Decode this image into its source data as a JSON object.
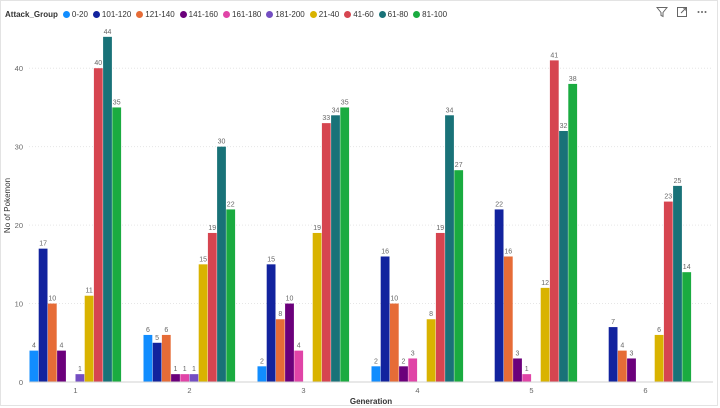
{
  "legend": {
    "title": "Attack_Group"
  },
  "toolbar": {
    "filter_icon": "filter-icon",
    "focus_icon": "focus-mode-icon",
    "more_icon": "more-options-icon"
  },
  "colors": {
    "0-20": "#118DFF",
    "101-120": "#12239E",
    "121-140": "#E66C37",
    "141-160": "#6B007B",
    "161-180": "#E044A7",
    "181-200": "#744EC2",
    "21-40": "#D9B300",
    "41-60": "#D64550",
    "61-80": "#197278",
    "81-100": "#1AAB40"
  },
  "chart_data": {
    "type": "bar",
    "title": "",
    "xlabel": "Generation",
    "ylabel": "No of Pokemon",
    "categories": [
      "1",
      "2",
      "3",
      "4",
      "5",
      "6"
    ],
    "ylim": [
      0,
      45
    ],
    "yticks": [
      0,
      10,
      20,
      30,
      40
    ],
    "grid": true,
    "legend_position": "top-left",
    "series": [
      {
        "name": "0-20",
        "values": [
          4,
          6,
          2,
          2,
          null,
          null
        ]
      },
      {
        "name": "101-120",
        "values": [
          17,
          5,
          15,
          16,
          22,
          7
        ]
      },
      {
        "name": "121-140",
        "values": [
          10,
          6,
          8,
          10,
          16,
          4
        ]
      },
      {
        "name": "141-160",
        "values": [
          4,
          1,
          10,
          2,
          3,
          3
        ]
      },
      {
        "name": "161-180",
        "values": [
          null,
          1,
          4,
          3,
          1,
          null
        ]
      },
      {
        "name": "181-200",
        "values": [
          1,
          1,
          null,
          null,
          null,
          null
        ]
      },
      {
        "name": "21-40",
        "values": [
          11,
          15,
          19,
          8,
          12,
          6
        ]
      },
      {
        "name": "41-60",
        "values": [
          40,
          19,
          33,
          19,
          41,
          23
        ]
      },
      {
        "name": "61-80",
        "values": [
          44,
          30,
          34,
          34,
          32,
          25
        ]
      },
      {
        "name": "81-100",
        "values": [
          35,
          22,
          35,
          27,
          38,
          14
        ]
      }
    ]
  }
}
